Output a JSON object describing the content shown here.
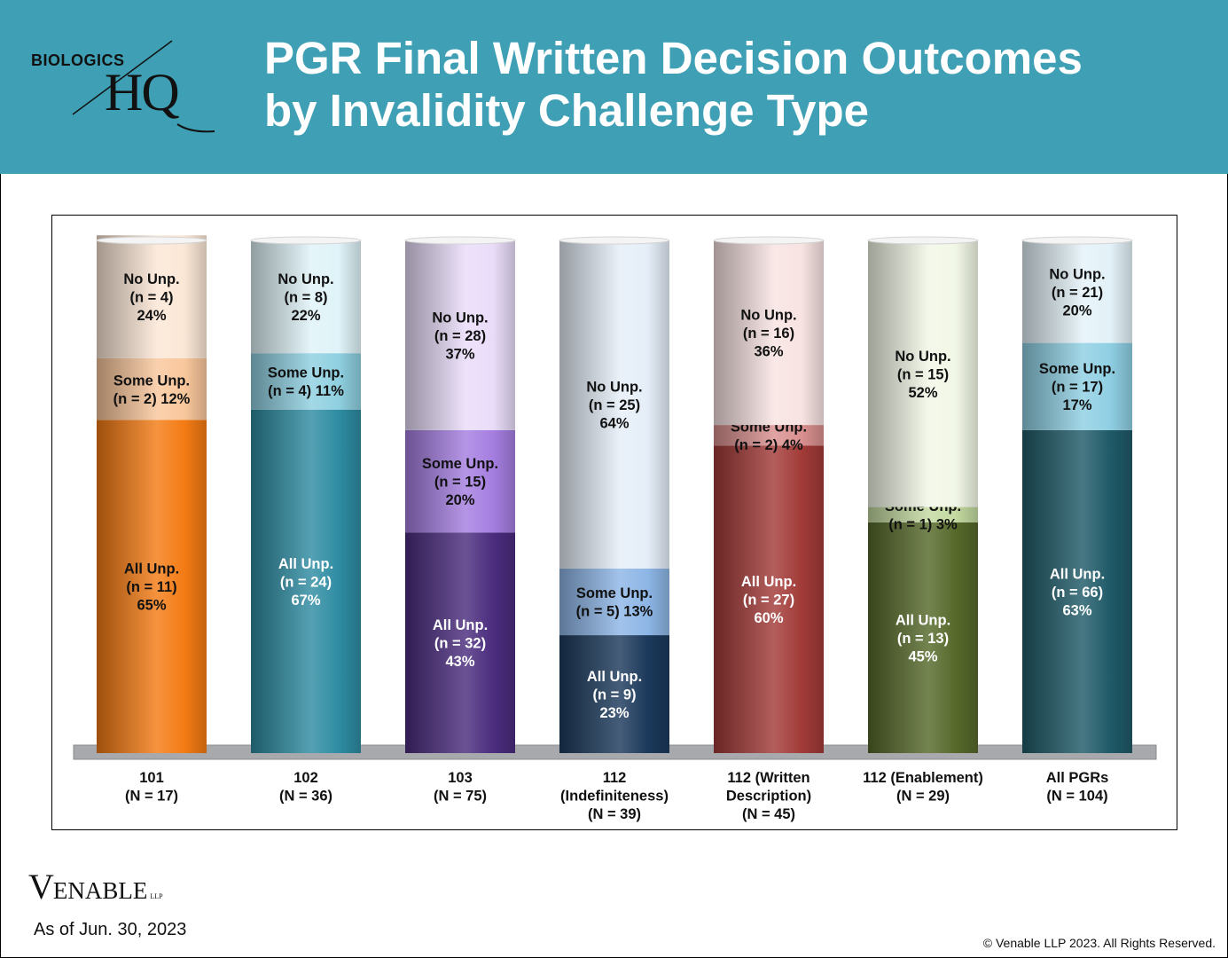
{
  "header": {
    "logo_top": "BIOLOGICS",
    "logo_bottom": "HQ",
    "title_line1": "PGR Final Written Decision Outcomes",
    "title_line2": "by Invalidity Challenge Type"
  },
  "footer": {
    "firm_first": "V",
    "firm_rest": "ENABLE",
    "firm_suffix": "LLP",
    "as_of": "As of Jun. 30, 2023",
    "copyright": "© Venable LLP 2023. All Rights Reserved."
  },
  "chart_data": {
    "type": "bar",
    "stacked": true,
    "normalized": true,
    "ylim": [
      0,
      100
    ],
    "categories": [
      [
        "101",
        "(N = 17)"
      ],
      [
        "102",
        "(N = 36)"
      ],
      [
        "103",
        "(N = 75)"
      ],
      [
        "112",
        "(Indefiniteness)",
        "(N = 39)"
      ],
      [
        "112 (Written",
        "Description)",
        "(N = 45)"
      ],
      [
        "112 (Enablement)",
        "(N = 29)"
      ],
      [
        "All PGRs",
        "(N = 104)"
      ]
    ],
    "series": [
      {
        "key": "all",
        "values": [
          65,
          67,
          43,
          23,
          60,
          45,
          63
        ],
        "labels": [
          [
            "All Unp.",
            "(n = 11)",
            "65%"
          ],
          [
            "All Unp.",
            "(n = 24)",
            "67%"
          ],
          [
            "All Unp.",
            "(n = 32)",
            "43%"
          ],
          [
            "All Unp.",
            "(n = 9)",
            "23%"
          ],
          [
            "All Unp.",
            "(n = 27)",
            "60%"
          ],
          [
            "All Unp.",
            "(n = 13)",
            "45%"
          ],
          [
            "All Unp.",
            "(n = 66)",
            "63%"
          ]
        ]
      },
      {
        "key": "some",
        "values": [
          12,
          11,
          20,
          13,
          4,
          3,
          17
        ],
        "labels": [
          [
            "Some Unp.",
            "(n = 2) 12%"
          ],
          [
            "Some Unp.",
            "(n = 4) 11%"
          ],
          [
            "Some Unp.",
            "(n = 15)",
            "20%"
          ],
          [
            "Some Unp.",
            "(n = 5) 13%"
          ],
          [
            "Some Unp.",
            "(n = 2) 4%"
          ],
          [
            "Some Unp.",
            "(n = 1) 3%"
          ],
          [
            "Some Unp.",
            "(n = 17)",
            "17%"
          ]
        ]
      },
      {
        "key": "none",
        "values": [
          24,
          22,
          37,
          64,
          36,
          52,
          20
        ],
        "labels": [
          [
            "No Unp.",
            "(n = 4)",
            "24%"
          ],
          [
            "No Unp.",
            "(n = 8)",
            "22%"
          ],
          [
            "No Unp.",
            "(n = 28)",
            "37%"
          ],
          [
            "No Unp.",
            "(n = 25)",
            "64%"
          ],
          [
            "No Unp.",
            "(n = 16)",
            "36%"
          ],
          [
            "No Unp.",
            "(n = 15)",
            "52%"
          ],
          [
            "No Unp.",
            "(n = 21)",
            "20%"
          ]
        ]
      }
    ],
    "colors": {
      "all": [
        "#f47b14",
        "#2e8ca2",
        "#4b2c7e",
        "#1c3a5c",
        "#a23b38",
        "#56692a",
        "#1f5a68"
      ],
      "some": [
        "#f9c79c",
        "#8fd0e0",
        "#a57ee0",
        "#8db6e6",
        "#d9908f",
        "#c3d9a0",
        "#8fcfe3"
      ],
      "none": [
        "#fbe7d6",
        "#dff3f8",
        "#e9dcf9",
        "#e5eef8",
        "#f8e3e2",
        "#f1f7e6",
        "#e3f2f8"
      ]
    }
  }
}
